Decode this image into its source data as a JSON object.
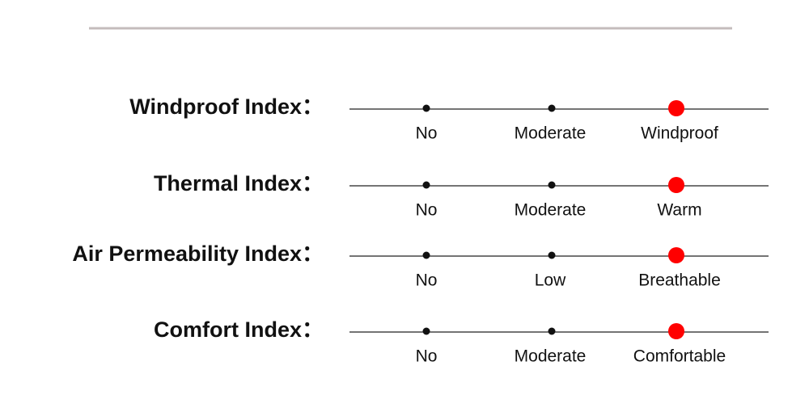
{
  "rows": [
    {
      "label": "Windproof Index：",
      "levels": [
        "No",
        "Moderate",
        "Windproof"
      ],
      "selected_index": 2
    },
    {
      "label": "Thermal Index：",
      "levels": [
        "No",
        "Moderate",
        "Warm"
      ],
      "selected_index": 2
    },
    {
      "label": "Air Permeability Index：",
      "levels": [
        "No",
        "Low",
        "Breathable"
      ],
      "selected_index": 2
    },
    {
      "label": "Comfort Index：",
      "levels": [
        "No",
        "Moderate",
        "Comfortable"
      ],
      "selected_index": 2
    }
  ],
  "selected_color": "#ff0000"
}
